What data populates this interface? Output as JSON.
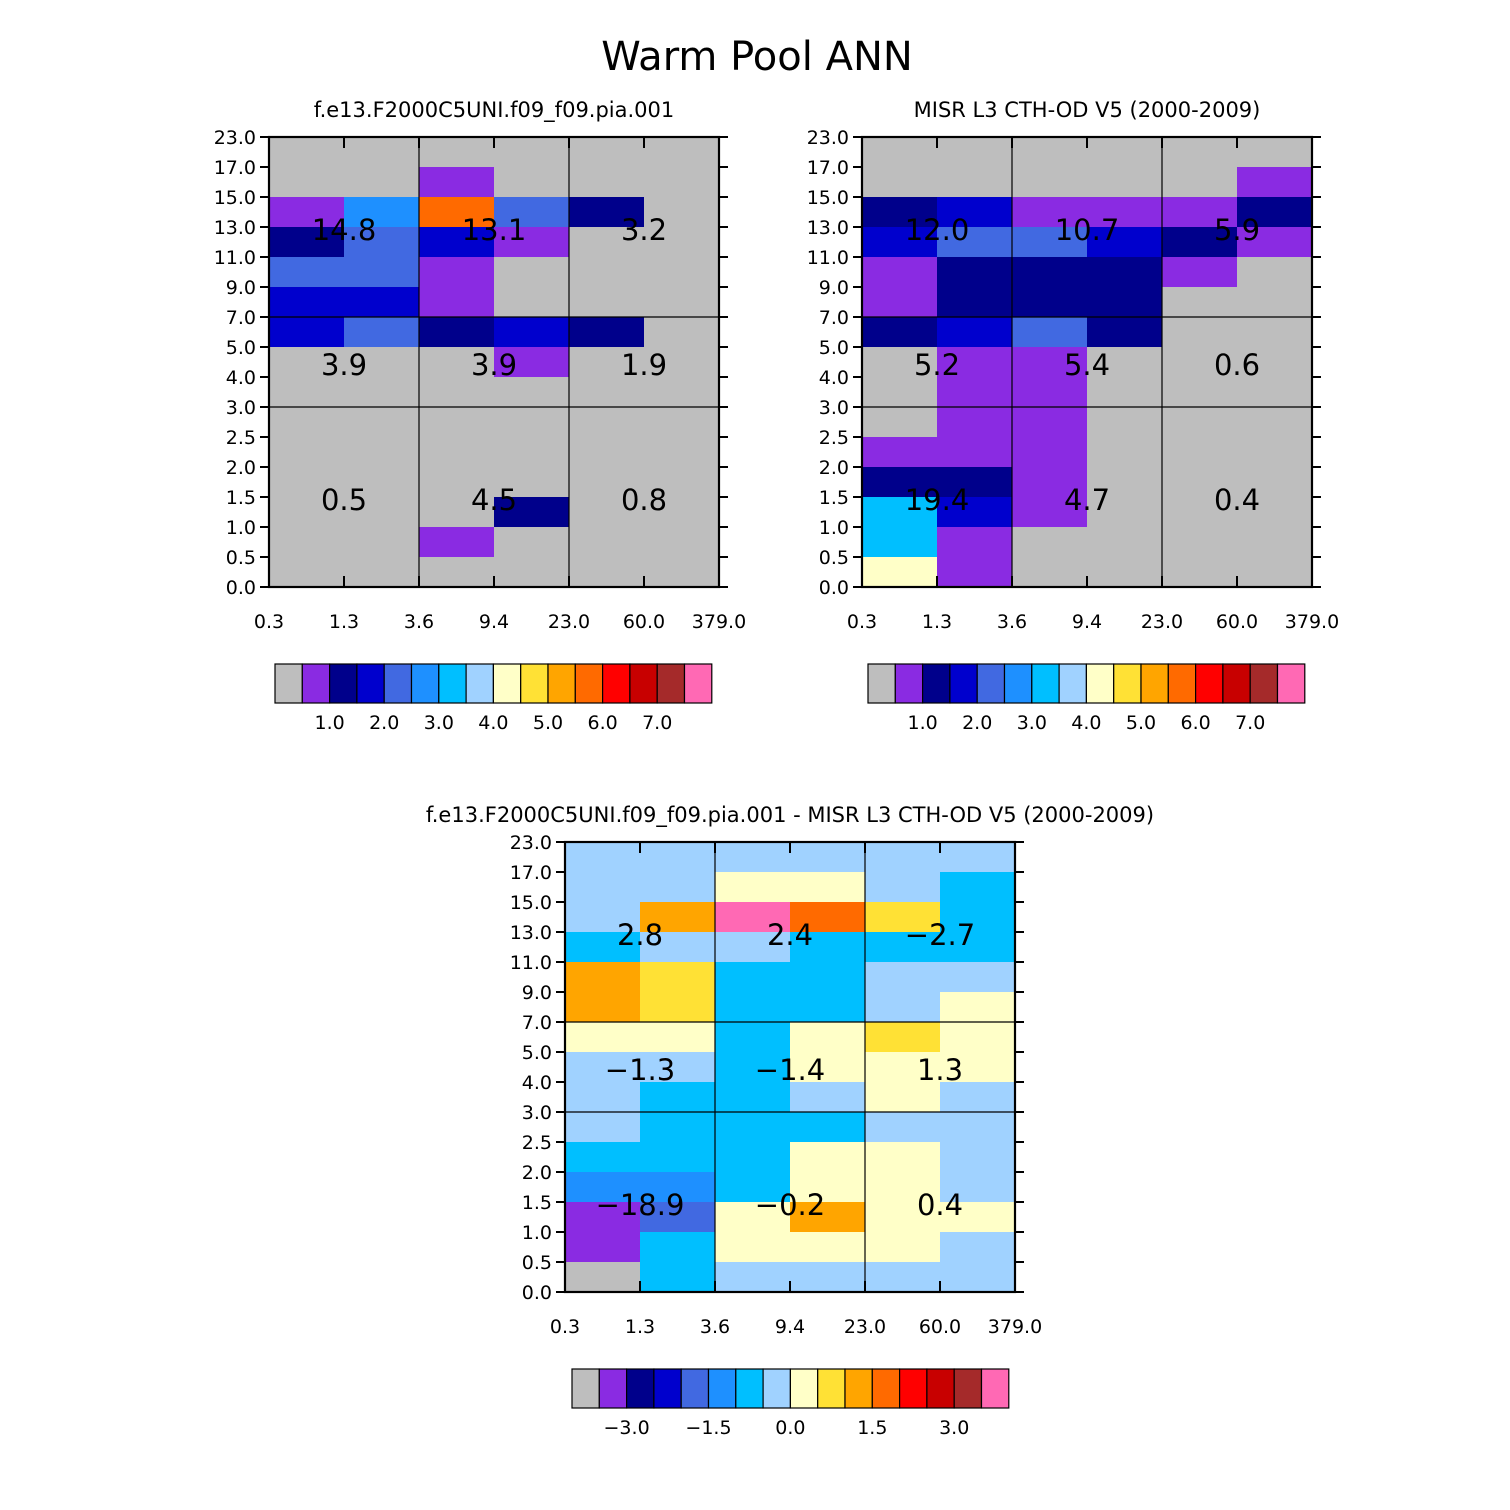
{
  "page_title": "Warm Pool ANN",
  "colors": {
    "model_palette": [
      "#bebebe",
      "#8a2be2",
      "#00008b",
      "#0000cd",
      "#4169e1",
      "#1e90ff",
      "#00bfff",
      "#a0d2ff",
      "#ffffc8",
      "#ffe135",
      "#ffa500",
      "#ff6a00",
      "#ff0000",
      "#c80000",
      "#a52a2a",
      "#ff69b4"
    ],
    "diff_palette": [
      "#bebebe",
      "#8a2be2",
      "#00008b",
      "#0000cd",
      "#4169e1",
      "#1e90ff",
      "#00bfff",
      "#a0d2ff",
      "#ffffc8",
      "#ffe135",
      "#ffa500",
      "#ff6a00",
      "#ff0000",
      "#c80000",
      "#a52a2a",
      "#ff69b4"
    ]
  },
  "chart_data": [
    {
      "type": "heatmap",
      "title": "f.e13.F2000C5UNI.f09_f09.pia.001",
      "x_tick_labels": [
        "0.3",
        "1.3",
        "3.6",
        "9.4",
        "23.0",
        "60.0",
        "379.0"
      ],
      "y_tick_labels": [
        "0.0",
        "0.5",
        "1.0",
        "1.5",
        "2.0",
        "2.5",
        "3.0",
        "4.0",
        "5.0",
        "7.0",
        "9.0",
        "11.0",
        "13.0",
        "15.0",
        "17.0",
        "23.0"
      ],
      "rows_top_to_bottom": [
        [
          0,
          0,
          0,
          0,
          0,
          0
        ],
        [
          0,
          0,
          1,
          0,
          0,
          0
        ],
        [
          1,
          5,
          11,
          4,
          2,
          0
        ],
        [
          2,
          4,
          3,
          1,
          0,
          0
        ],
        [
          4,
          4,
          1,
          0,
          0,
          0
        ],
        [
          3,
          3,
          1,
          0,
          0,
          0
        ],
        [
          3,
          4,
          2,
          3,
          2,
          0
        ],
        [
          0,
          0,
          0,
          1,
          0,
          0
        ],
        [
          0,
          0,
          0,
          0,
          0,
          0
        ],
        [
          0,
          0,
          0,
          0,
          0,
          0
        ],
        [
          0,
          0,
          0,
          0,
          0,
          0
        ],
        [
          0,
          0,
          0,
          0,
          0,
          0
        ],
        [
          0,
          0,
          0,
          2,
          0,
          0
        ],
        [
          0,
          0,
          1,
          0,
          0,
          0
        ],
        [
          0,
          0,
          0,
          0,
          0,
          0
        ]
      ],
      "region_totals": [
        [
          "14.8",
          "13.1",
          "3.2"
        ],
        [
          "3.9",
          "3.9",
          "1.9"
        ],
        [
          "0.5",
          "4.5",
          "0.8"
        ]
      ],
      "colorbar_labels": [
        "1.0",
        "2.0",
        "3.0",
        "4.0",
        "5.0",
        "6.0",
        "7.0"
      ]
    },
    {
      "type": "heatmap",
      "title": "MISR L3 CTH-OD V5 (2000-2009)",
      "x_tick_labels": [
        "0.3",
        "1.3",
        "3.6",
        "9.4",
        "23.0",
        "60.0",
        "379.0"
      ],
      "y_tick_labels": [
        "0.0",
        "0.5",
        "1.0",
        "1.5",
        "2.0",
        "2.5",
        "3.0",
        "4.0",
        "5.0",
        "7.0",
        "9.0",
        "11.0",
        "13.0",
        "15.0",
        "17.0",
        "23.0"
      ],
      "rows_top_to_bottom": [
        [
          0,
          0,
          0,
          0,
          0,
          0
        ],
        [
          0,
          0,
          0,
          0,
          0,
          1
        ],
        [
          2,
          3,
          1,
          1,
          1,
          2
        ],
        [
          3,
          4,
          4,
          3,
          2,
          1
        ],
        [
          1,
          2,
          2,
          2,
          1,
          0
        ],
        [
          1,
          2,
          2,
          2,
          0,
          0
        ],
        [
          2,
          3,
          4,
          2,
          0,
          0
        ],
        [
          0,
          1,
          1,
          0,
          0,
          0
        ],
        [
          0,
          1,
          1,
          0,
          0,
          0
        ],
        [
          0,
          1,
          1,
          0,
          0,
          0
        ],
        [
          1,
          1,
          1,
          0,
          0,
          0
        ],
        [
          2,
          2,
          1,
          0,
          0,
          0
        ],
        [
          6,
          3,
          1,
          0,
          0,
          0
        ],
        [
          6,
          1,
          0,
          0,
          0,
          0
        ],
        [
          8,
          1,
          0,
          0,
          0,
          0
        ]
      ],
      "region_totals": [
        [
          "12.0",
          "10.7",
          "5.9"
        ],
        [
          "5.2",
          "5.4",
          "0.6"
        ],
        [
          "19.4",
          "4.7",
          "0.4"
        ]
      ],
      "colorbar_labels": [
        "1.0",
        "2.0",
        "3.0",
        "4.0",
        "5.0",
        "6.0",
        "7.0"
      ]
    },
    {
      "type": "heatmap",
      "title": "f.e13.F2000C5UNI.f09_f09.pia.001 - MISR L3 CTH-OD V5 (2000-2009)",
      "x_tick_labels": [
        "0.3",
        "1.3",
        "3.6",
        "9.4",
        "23.0",
        "60.0",
        "379.0"
      ],
      "y_tick_labels": [
        "0.0",
        "0.5",
        "1.0",
        "1.5",
        "2.0",
        "2.5",
        "3.0",
        "4.0",
        "5.0",
        "7.0",
        "9.0",
        "11.0",
        "13.0",
        "15.0",
        "17.0",
        "23.0"
      ],
      "rows_top_to_bottom": [
        [
          7,
          7,
          7,
          7,
          7,
          7
        ],
        [
          7,
          7,
          8,
          8,
          7,
          6
        ],
        [
          7,
          10,
          15,
          11,
          9,
          6
        ],
        [
          6,
          7,
          7,
          6,
          6,
          6
        ],
        [
          10,
          9,
          6,
          6,
          7,
          7
        ],
        [
          10,
          9,
          6,
          6,
          7,
          8
        ],
        [
          8,
          8,
          6,
          8,
          9,
          8
        ],
        [
          7,
          7,
          6,
          8,
          8,
          8
        ],
        [
          7,
          6,
          6,
          7,
          8,
          7
        ],
        [
          7,
          6,
          6,
          6,
          7,
          7
        ],
        [
          6,
          6,
          6,
          8,
          8,
          7
        ],
        [
          5,
          5,
          6,
          8,
          8,
          7
        ],
        [
          1,
          4,
          8,
          10,
          8,
          8
        ],
        [
          1,
          6,
          8,
          8,
          8,
          7
        ],
        [
          0,
          6,
          7,
          7,
          7,
          7
        ]
      ],
      "region_totals": [
        [
          "2.8",
          "2.4",
          "-2.7"
        ],
        [
          "-1.3",
          "-1.4",
          "1.3"
        ],
        [
          "-18.9",
          "-0.2",
          "0.4"
        ]
      ],
      "colorbar_labels": [
        "-3.0",
        "-1.5",
        "0.0",
        "1.5",
        "3.0"
      ]
    }
  ]
}
